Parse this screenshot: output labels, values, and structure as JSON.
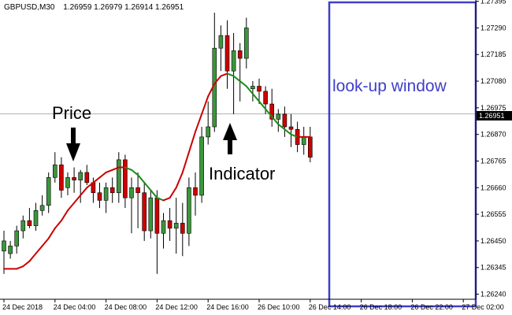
{
  "chart_data": {
    "type": "candlestick",
    "header": {
      "symbol": "GBPUSD,M30",
      "ohlc": "1.26959 1.26979 1.26914 1.26951"
    },
    "current_price_label": "1.26951",
    "current_price": 1.26951,
    "ylim": [
      1.2622,
      1.274
    ],
    "y_ticks": [
      {
        "value": 1.27395,
        "label": "1.27395"
      },
      {
        "value": 1.2729,
        "label": "1.27290"
      },
      {
        "value": 1.27185,
        "label": "1.27185"
      },
      {
        "value": 1.2708,
        "label": "1.27080"
      },
      {
        "value": 1.26975,
        "label": "1.26975"
      },
      {
        "value": 1.2687,
        "label": "1.26870"
      },
      {
        "value": 1.26765,
        "label": "1.26765"
      },
      {
        "value": 1.2666,
        "label": "1.26660"
      },
      {
        "value": 1.26555,
        "label": "1.26555"
      },
      {
        "value": 1.2645,
        "label": "1.26450"
      },
      {
        "value": 1.26345,
        "label": "1.26345"
      },
      {
        "value": 1.2624,
        "label": "1.26240"
      }
    ],
    "x_ticks": [
      {
        "index": 0,
        "label": "24 Dec 2018"
      },
      {
        "index": 8,
        "label": "24 Dec 04:00"
      },
      {
        "index": 16,
        "label": "24 Dec 08:00"
      },
      {
        "index": 24,
        "label": "24 Dec 12:00"
      },
      {
        "index": 32,
        "label": "24 Dec 16:00"
      },
      {
        "index": 40,
        "label": "26 Dec 10:00"
      },
      {
        "index": 48,
        "label": "26 Dec 14:00"
      },
      {
        "index": 56,
        "label": "26 Dec 18:00"
      },
      {
        "index": 64,
        "label": "26 Dec 22:00"
      },
      {
        "index": 72,
        "label": "27 Dec 02:00"
      }
    ],
    "candles": [
      {
        "o": 1.2641,
        "h": 1.2649,
        "l": 1.2632,
        "c": 1.2645
      },
      {
        "o": 1.264,
        "h": 1.2645,
        "l": 1.2638,
        "c": 1.2643
      },
      {
        "o": 1.2643,
        "h": 1.2651,
        "l": 1.264,
        "c": 1.2649
      },
      {
        "o": 1.2649,
        "h": 1.2655,
        "l": 1.2646,
        "c": 1.2653
      },
      {
        "o": 1.2653,
        "h": 1.2658,
        "l": 1.265,
        "c": 1.2651
      },
      {
        "o": 1.2651,
        "h": 1.266,
        "l": 1.2649,
        "c": 1.2657
      },
      {
        "o": 1.2657,
        "h": 1.2663,
        "l": 1.2655,
        "c": 1.2659
      },
      {
        "o": 1.2659,
        "h": 1.2672,
        "l": 1.2656,
        "c": 1.267
      },
      {
        "o": 1.267,
        "h": 1.268,
        "l": 1.2668,
        "c": 1.2675
      },
      {
        "o": 1.2675,
        "h": 1.2678,
        "l": 1.2662,
        "c": 1.2665
      },
      {
        "o": 1.2666,
        "h": 1.2672,
        "l": 1.2663,
        "c": 1.267
      },
      {
        "o": 1.267,
        "h": 1.2674,
        "l": 1.2664,
        "c": 1.2669
      },
      {
        "o": 1.2669,
        "h": 1.2673,
        "l": 1.266,
        "c": 1.2672
      },
      {
        "o": 1.2672,
        "h": 1.2675,
        "l": 1.2667,
        "c": 1.2668
      },
      {
        "o": 1.2668,
        "h": 1.267,
        "l": 1.266,
        "c": 1.2664
      },
      {
        "o": 1.2664,
        "h": 1.2668,
        "l": 1.2658,
        "c": 1.2661
      },
      {
        "o": 1.2661,
        "h": 1.2668,
        "l": 1.2656,
        "c": 1.2666
      },
      {
        "o": 1.2666,
        "h": 1.267,
        "l": 1.266,
        "c": 1.2664
      },
      {
        "o": 1.2664,
        "h": 1.268,
        "l": 1.266,
        "c": 1.2677
      },
      {
        "o": 1.2677,
        "h": 1.2679,
        "l": 1.2658,
        "c": 1.2662
      },
      {
        "o": 1.2662,
        "h": 1.267,
        "l": 1.2648,
        "c": 1.2666
      },
      {
        "o": 1.2666,
        "h": 1.2672,
        "l": 1.265,
        "c": 1.2664
      },
      {
        "o": 1.2664,
        "h": 1.2668,
        "l": 1.2645,
        "c": 1.2649
      },
      {
        "o": 1.2649,
        "h": 1.2665,
        "l": 1.2646,
        "c": 1.2662
      },
      {
        "o": 1.2662,
        "h": 1.2665,
        "l": 1.2632,
        "c": 1.2648
      },
      {
        "o": 1.2648,
        "h": 1.2656,
        "l": 1.2642,
        "c": 1.2653
      },
      {
        "o": 1.2653,
        "h": 1.2658,
        "l": 1.2645,
        "c": 1.265
      },
      {
        "o": 1.265,
        "h": 1.2662,
        "l": 1.264,
        "c": 1.2652
      },
      {
        "o": 1.2652,
        "h": 1.266,
        "l": 1.2639,
        "c": 1.2648
      },
      {
        "o": 1.2648,
        "h": 1.267,
        "l": 1.2643,
        "c": 1.2666
      },
      {
        "o": 1.2666,
        "h": 1.2672,
        "l": 1.2655,
        "c": 1.2663
      },
      {
        "o": 1.2663,
        "h": 1.269,
        "l": 1.266,
        "c": 1.2686
      },
      {
        "o": 1.2686,
        "h": 1.27,
        "l": 1.2683,
        "c": 1.269
      },
      {
        "o": 1.269,
        "h": 1.2735,
        "l": 1.2688,
        "c": 1.2721
      },
      {
        "o": 1.2721,
        "h": 1.273,
        "l": 1.2712,
        "c": 1.2726
      },
      {
        "o": 1.2726,
        "h": 1.2732,
        "l": 1.2705,
        "c": 1.2712
      },
      {
        "o": 1.2712,
        "h": 1.2727,
        "l": 1.2695,
        "c": 1.272
      },
      {
        "o": 1.272,
        "h": 1.2723,
        "l": 1.27,
        "c": 1.2717
      },
      {
        "o": 1.2717,
        "h": 1.2733,
        "l": 1.2713,
        "c": 1.2729
      },
      {
        "o": 1.2705,
        "h": 1.2708,
        "l": 1.27,
        "c": 1.2706
      },
      {
        "o": 1.2706,
        "h": 1.2709,
        "l": 1.2699,
        "c": 1.2704
      },
      {
        "o": 1.2704,
        "h": 1.2706,
        "l": 1.2695,
        "c": 1.2699
      },
      {
        "o": 1.2699,
        "h": 1.2705,
        "l": 1.269,
        "c": 1.2693
      },
      {
        "o": 1.2693,
        "h": 1.2697,
        "l": 1.2688,
        "c": 1.2695
      },
      {
        "o": 1.2695,
        "h": 1.2698,
        "l": 1.2686,
        "c": 1.269
      },
      {
        "o": 1.269,
        "h": 1.2695,
        "l": 1.2682,
        "c": 1.2689
      },
      {
        "o": 1.2689,
        "h": 1.2692,
        "l": 1.268,
        "c": 1.2683
      },
      {
        "o": 1.2683,
        "h": 1.269,
        "l": 1.2679,
        "c": 1.2686
      },
      {
        "o": 1.2686,
        "h": 1.269,
        "l": 1.2676,
        "c": 1.2678
      }
    ],
    "indicator": {
      "color": "#cc0000",
      "values": [
        1.2634,
        1.2634,
        1.2634,
        1.2635,
        1.2637,
        1.264,
        1.2643,
        1.2646,
        1.265,
        1.2653,
        1.2657,
        1.266,
        1.2663,
        1.2666,
        1.2668,
        1.267,
        1.2672,
        1.2673,
        1.2674,
        1.2674,
        1.2673,
        1.2671,
        1.2668,
        1.2665,
        1.2662,
        1.2661,
        1.2662,
        1.2666,
        1.2672,
        1.268,
        1.2688,
        1.2695,
        1.2702,
        1.2707,
        1.271,
        1.2711,
        1.271,
        1.2708,
        1.2706,
        1.2703,
        1.27,
        1.2697,
        1.2694,
        1.2691,
        1.2689,
        1.2687,
        1.2686,
        1.2686,
        1.2686
      ]
    },
    "annotations": [
      {
        "text": "Price"
      },
      {
        "text": "Indicator"
      },
      {
        "text": "look-up window"
      }
    ],
    "colors": {
      "bull": "#3c963c",
      "bear": "#cc0000",
      "indicator_up": "#cc0000",
      "indicator_down": "#1a8c1a",
      "window": "#3f3fc8",
      "price_line": "#b0b0b0",
      "price_tag_bg": "#000000"
    }
  }
}
